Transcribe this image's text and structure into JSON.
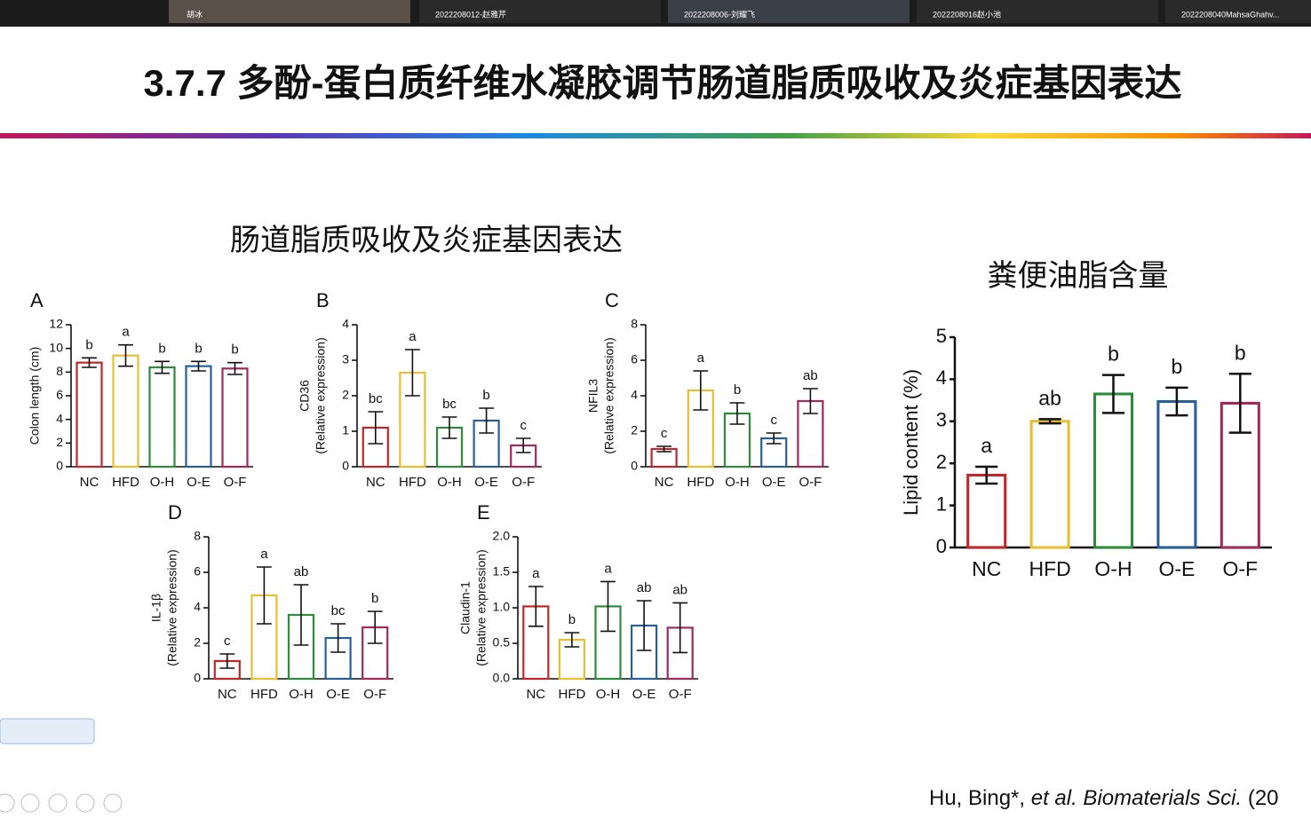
{
  "meeting_bar": {
    "participants": [
      "胡冰",
      "2022208012-赵雅芹",
      "2022208006-刘耀飞",
      "2022208016赵小池",
      "2022208040MahsaGhahv..."
    ]
  },
  "slide": {
    "title": "3.7.7 多酚-蛋白质纤维水凝胶调节肠道脂质吸收及炎症基因表达",
    "left_heading": "肠道脂质吸收及炎症基因表达",
    "citation_author": "Hu, Bing*, ",
    "citation_journal": "et al. Biomaterials Sci.",
    "citation_year": " (20"
  },
  "chart_data": [
    {
      "type": "bar",
      "panel": "A",
      "y_label": [
        "Colon length (cm)"
      ],
      "categories": [
        "NC",
        "HFD",
        "O-H",
        "O-E",
        "O-F"
      ],
      "colors": [
        "#c0272d",
        "#e6bf34",
        "#2e8b3e",
        "#2a5f96",
        "#9e2a5e"
      ],
      "values": [
        8.8,
        9.4,
        8.4,
        8.5,
        8.3
      ],
      "errors": [
        0.4,
        0.9,
        0.5,
        0.4,
        0.5
      ],
      "annotations": [
        "b",
        "a",
        "b",
        "b",
        "b"
      ],
      "ylim": [
        0,
        12
      ],
      "yticks": [
        0,
        2,
        4,
        6,
        8,
        10,
        12
      ]
    },
    {
      "type": "bar",
      "panel": "B",
      "y_label": [
        "CD36",
        "(Relative expression)"
      ],
      "categories": [
        "NC",
        "HFD",
        "O-H",
        "O-E",
        "O-F"
      ],
      "colors": [
        "#c0272d",
        "#e6bf34",
        "#2e8b3e",
        "#2a5f96",
        "#9e2a5e"
      ],
      "values": [
        1.1,
        2.65,
        1.1,
        1.3,
        0.6
      ],
      "errors": [
        0.45,
        0.65,
        0.3,
        0.35,
        0.2
      ],
      "annotations": [
        "bc",
        "a",
        "bc",
        "b",
        "c"
      ],
      "ylim": [
        0,
        4
      ],
      "yticks": [
        0,
        1,
        2,
        3,
        4
      ]
    },
    {
      "type": "bar",
      "panel": "C",
      "y_label": [
        "NFIL3",
        "(Relative expression)"
      ],
      "categories": [
        "NC",
        "HFD",
        "O-H",
        "O-E",
        "O-F"
      ],
      "colors": [
        "#c0272d",
        "#e6bf34",
        "#2e8b3e",
        "#2a5f96",
        "#9e2a5e"
      ],
      "values": [
        1.0,
        4.3,
        3.0,
        1.6,
        3.7
      ],
      "errors": [
        0.15,
        1.1,
        0.6,
        0.3,
        0.7
      ],
      "annotations": [
        "c",
        "a",
        "b",
        "c",
        "ab"
      ],
      "ylim": [
        0,
        8
      ],
      "yticks": [
        0,
        2,
        4,
        6,
        8
      ]
    },
    {
      "type": "bar",
      "panel": "D",
      "y_label": [
        "IL-1β",
        "(Relative expression)"
      ],
      "categories": [
        "NC",
        "HFD",
        "O-H",
        "O-E",
        "O-F"
      ],
      "colors": [
        "#c0272d",
        "#e6bf34",
        "#2e8b3e",
        "#2a5f96",
        "#9e2a5e"
      ],
      "values": [
        1.0,
        4.7,
        3.6,
        2.3,
        2.9
      ],
      "errors": [
        0.4,
        1.6,
        1.7,
        0.8,
        0.9
      ],
      "annotations": [
        "c",
        "a",
        "ab",
        "bc",
        "b"
      ],
      "ylim": [
        0,
        8
      ],
      "yticks": [
        0,
        2,
        4,
        6,
        8
      ]
    },
    {
      "type": "bar",
      "panel": "E",
      "y_label": [
        "Claudin-1",
        "(Relative expression)"
      ],
      "categories": [
        "NC",
        "HFD",
        "O-H",
        "O-E",
        "O-F"
      ],
      "colors": [
        "#c0272d",
        "#e6bf34",
        "#2e8b3e",
        "#2a5f96",
        "#9e2a5e"
      ],
      "values": [
        1.02,
        0.55,
        1.02,
        0.75,
        0.72
      ],
      "errors": [
        0.28,
        0.1,
        0.35,
        0.35,
        0.35
      ],
      "annotations": [
        "a",
        "b",
        "a",
        "ab",
        "ab"
      ],
      "ylim": [
        0,
        2
      ],
      "yticks": [
        {
          "value": 0,
          "label": "0.0"
        },
        0.5,
        {
          "value": 1,
          "label": "1.0"
        },
        1.5,
        {
          "value": 2,
          "label": "2.0"
        }
      ]
    },
    {
      "type": "bar",
      "title": "粪便油脂含量",
      "y_label": [
        "Lipid content (%)"
      ],
      "categories": [
        "NC",
        "HFD",
        "O-H",
        "O-E",
        "O-F"
      ],
      "colors": [
        "#c0272d",
        "#e6bf34",
        "#2e8b3e",
        "#2a5f96",
        "#9e2a5e"
      ],
      "values": [
        1.72,
        3.0,
        3.65,
        3.47,
        3.43
      ],
      "errors": [
        0.2,
        0.05,
        0.45,
        0.33,
        0.7
      ],
      "annotations": [
        "a",
        "ab",
        "b",
        "b",
        "b"
      ],
      "ylim": [
        0,
        5
      ],
      "yticks": [
        0,
        1,
        2,
        3,
        4,
        5
      ]
    }
  ]
}
